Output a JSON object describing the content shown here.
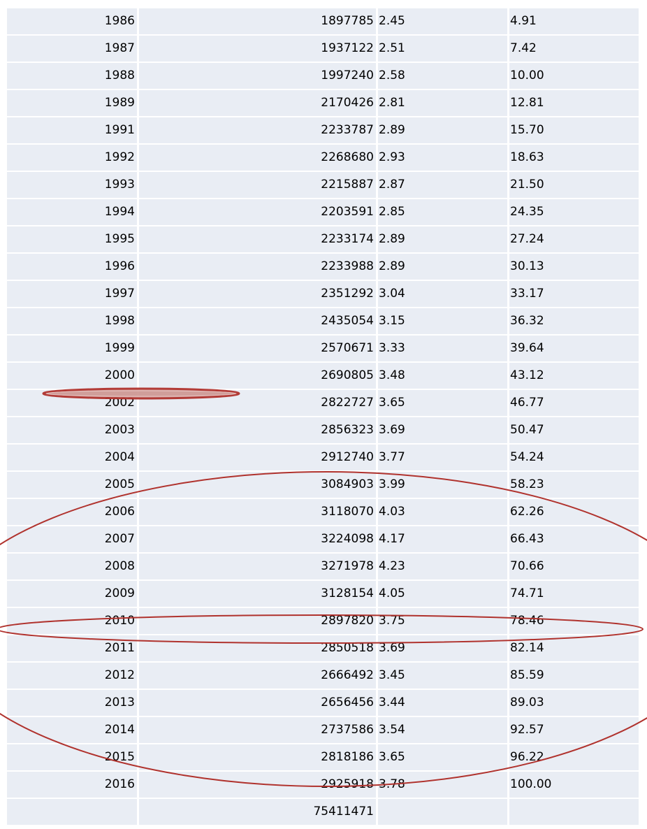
{
  "table": {
    "rows": [
      {
        "year": "1986",
        "value": "1897785",
        "pct": "2.45",
        "cum": "4.91"
      },
      {
        "year": "1987",
        "value": "1937122",
        "pct": "2.51",
        "cum": "7.42"
      },
      {
        "year": "1988",
        "value": "1997240",
        "pct": "2.58",
        "cum": "10.00"
      },
      {
        "year": "1989",
        "value": "2170426",
        "pct": "2.81",
        "cum": "12.81"
      },
      {
        "year": "1991",
        "value": "2233787",
        "pct": "2.89",
        "cum": "15.70"
      },
      {
        "year": "1992",
        "value": "2268680",
        "pct": "2.93",
        "cum": "18.63"
      },
      {
        "year": "1993",
        "value": "2215887",
        "pct": "2.87",
        "cum": "21.50"
      },
      {
        "year": "1994",
        "value": "2203591",
        "pct": "2.85",
        "cum": "24.35"
      },
      {
        "year": "1995",
        "value": "2233174",
        "pct": "2.89",
        "cum": "27.24"
      },
      {
        "year": "1996",
        "value": "2233988",
        "pct": "2.89",
        "cum": "30.13"
      },
      {
        "year": "1997",
        "value": "2351292",
        "pct": "3.04",
        "cum": "33.17"
      },
      {
        "year": "1998",
        "value": "2435054",
        "pct": "3.15",
        "cum": "36.32"
      },
      {
        "year": "1999",
        "value": "2570671",
        "pct": "3.33",
        "cum": "39.64"
      },
      {
        "year": "2000",
        "value": "2690805",
        "pct": "3.48",
        "cum": "43.12"
      },
      {
        "year": "2002",
        "value": "2822727",
        "pct": "3.65",
        "cum": "46.77"
      },
      {
        "year": "2003",
        "value": "2856323",
        "pct": "3.69",
        "cum": "50.47"
      },
      {
        "year": "2004",
        "value": "2912740",
        "pct": "3.77",
        "cum": "54.24"
      },
      {
        "year": "2005",
        "value": "3084903",
        "pct": "3.99",
        "cum": "58.23"
      },
      {
        "year": "2006",
        "value": "3118070",
        "pct": "4.03",
        "cum": "62.26"
      },
      {
        "year": "2007",
        "value": "3224098",
        "pct": "4.17",
        "cum": "66.43"
      },
      {
        "year": "2008",
        "value": "3271978",
        "pct": "4.23",
        "cum": "70.66"
      },
      {
        "year": "2009",
        "value": "3128154",
        "pct": "4.05",
        "cum": "74.71"
      },
      {
        "year": "2010",
        "value": "2897820",
        "pct": "3.75",
        "cum": "78.46"
      },
      {
        "year": "2011",
        "value": "2850518",
        "pct": "3.69",
        "cum": "82.14"
      },
      {
        "year": "2012",
        "value": "2666492",
        "pct": "3.45",
        "cum": "85.59"
      },
      {
        "year": "2013",
        "value": "2656456",
        "pct": "3.44",
        "cum": "89.03"
      },
      {
        "year": "2014",
        "value": "2737586",
        "pct": "3.54",
        "cum": "92.57"
      },
      {
        "year": "2015",
        "value": "2818186",
        "pct": "3.65",
        "cum": "96.22"
      },
      {
        "year": "2016",
        "value": "2925918",
        "pct": "3.78",
        "cum": "100.00"
      },
      {
        "year": "",
        "value": "75411471",
        "pct": "",
        "cum": ""
      }
    ]
  },
  "colors": {
    "cell_fill": "#e9edf4",
    "annotation_stroke": "#b0322d"
  }
}
